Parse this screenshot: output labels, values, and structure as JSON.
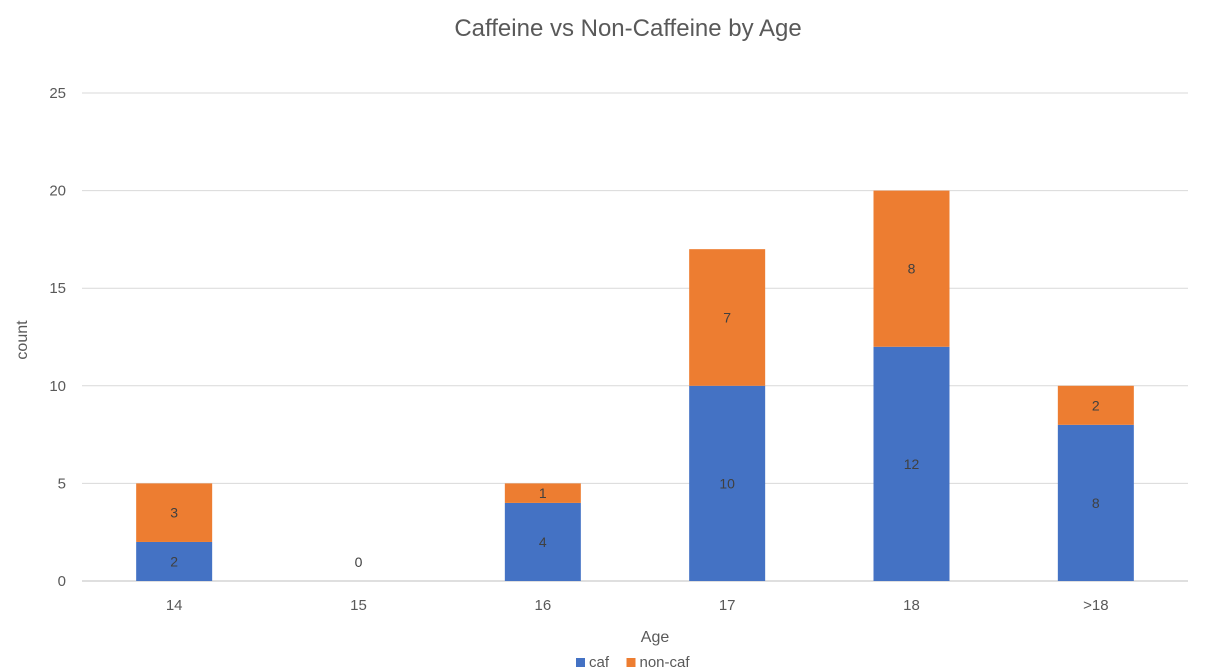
{
  "chart_data": {
    "type": "bar",
    "stacked": true,
    "title": "Caffeine vs Non-Caffeine by Age",
    "xlabel": "Age",
    "ylabel": "count",
    "categories": [
      "14",
      "15",
      "16",
      "17",
      "18",
      ">18"
    ],
    "series": [
      {
        "name": "caf",
        "values": [
          2,
          0,
          4,
          10,
          12,
          8
        ],
        "color": "#4472C4"
      },
      {
        "name": "non-caf",
        "values": [
          3,
          0,
          1,
          7,
          8,
          2
        ],
        "color": "#ED7D31"
      }
    ],
    "ylim": [
      0,
      25
    ],
    "yticks": [
      0,
      5,
      10,
      15,
      20,
      25
    ],
    "grid": true,
    "legend_position": "bottom",
    "data_labels": true
  }
}
